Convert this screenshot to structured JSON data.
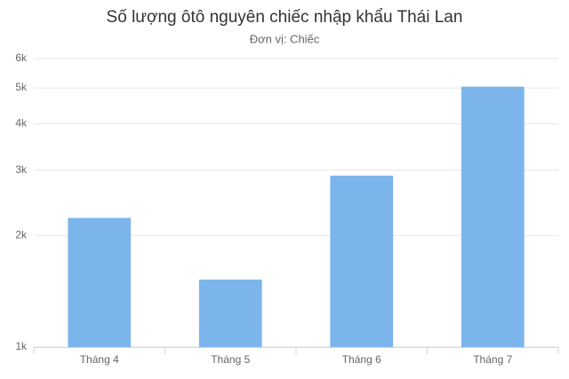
{
  "chart_data": {
    "type": "bar",
    "title": "Số lượng ôtô nguyên chiếc nhập khẩu Thái Lan",
    "subtitle": "Đơn vị: Chiếc",
    "categories": [
      "Tháng 4",
      "Tháng 5",
      "Tháng 6",
      "Tháng 7"
    ],
    "values": [
      2230,
      1520,
      2900,
      5040
    ],
    "color": "#7cb5ec",
    "ylim": [
      1000,
      6000
    ],
    "log_scale": true,
    "grid": true,
    "yticks": [
      {
        "value": 1000,
        "label": "1k"
      },
      {
        "value": 2000,
        "label": "2k"
      },
      {
        "value": 3000,
        "label": "3k"
      },
      {
        "value": 4000,
        "label": "4k"
      },
      {
        "value": 5000,
        "label": "5k"
      },
      {
        "value": 6000,
        "label": "6k"
      }
    ]
  }
}
